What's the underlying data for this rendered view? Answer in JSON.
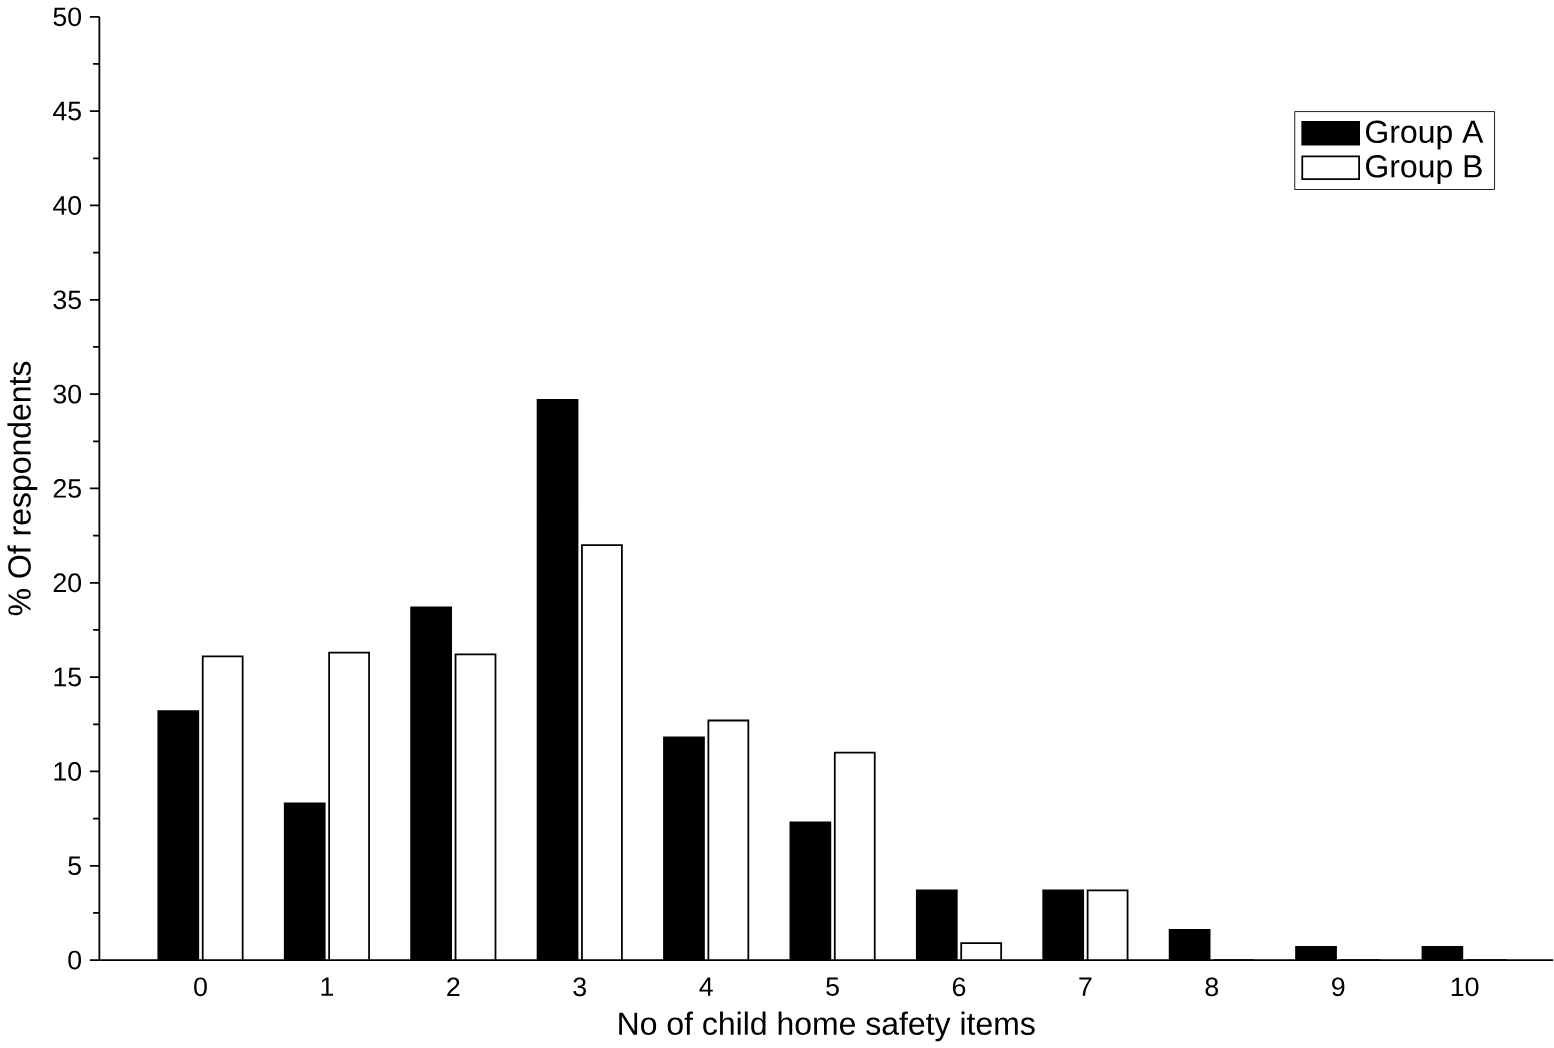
{
  "chart_data": {
    "type": "bar",
    "xlabel": "No of child home safety items",
    "ylabel": "% Of respondents",
    "categories": [
      "0",
      "1",
      "2",
      "3",
      "4",
      "5",
      "6",
      "7",
      "8",
      "9",
      "10"
    ],
    "series": [
      {
        "name": "Group A",
        "color": "#000000",
        "values": [
          13.2,
          8.3,
          18.7,
          29.7,
          11.8,
          7.3,
          3.7,
          3.7,
          1.6,
          0.7,
          0.7
        ]
      },
      {
        "name": "Group B",
        "color": "#ffffff",
        "values": [
          16.1,
          16.3,
          16.2,
          22.0,
          12.7,
          11.0,
          0.9,
          3.7,
          0,
          0,
          0
        ]
      }
    ],
    "ylim": [
      0,
      50
    ],
    "yticks": [
      0,
      5,
      10,
      15,
      20,
      25,
      30,
      35,
      40,
      45,
      50
    ],
    "grid": false,
    "legend": "top right"
  }
}
